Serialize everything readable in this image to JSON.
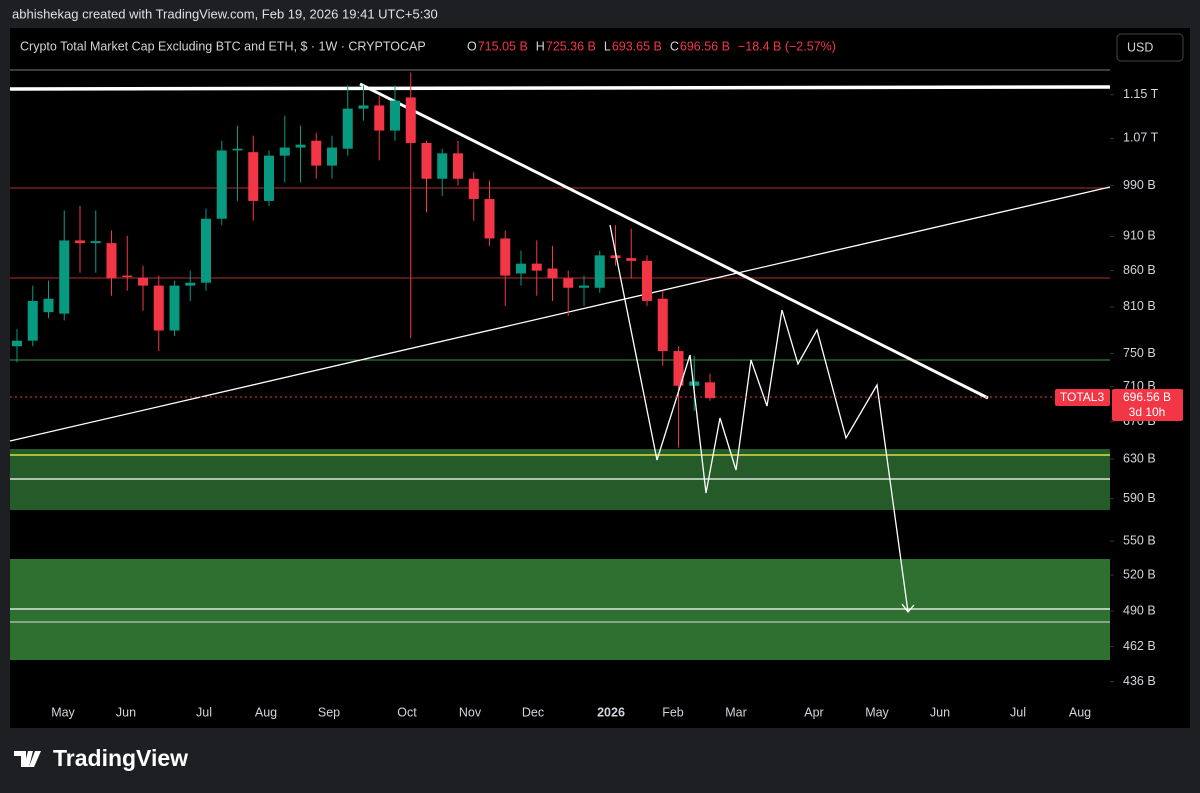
{
  "header": {
    "attribution": "abhishekag created with TradingView.com, Feb 19, 2026 19:41 UTC+5:30"
  },
  "chart_data": {
    "type": "candlestick",
    "title": "Crypto Total Market Cap Excluding BTC and ETH, $ · 1W · CRYPTOCAP",
    "legend": {
      "items": [
        {
          "key": "O",
          "text": "715.05 B"
        },
        {
          "key": "H",
          "text": "725.36 B"
        },
        {
          "key": "L",
          "text": "693.65 B"
        },
        {
          "key": "C",
          "text": "696.56 B"
        }
      ],
      "change": "−18.4 B (−2.57%)"
    },
    "currency": "USD",
    "up_color": "#089981",
    "down_color": "#f23645",
    "log": true,
    "ylim": [
      423,
      1280
    ],
    "yticks": [
      {
        "value": 1150,
        "label": "1.15 T"
      },
      {
        "value": 1070,
        "label": "1.07 T"
      },
      {
        "value": 990,
        "label": "990 B"
      },
      {
        "value": 910,
        "label": "910 B"
      },
      {
        "value": 860,
        "label": "860 B"
      },
      {
        "value": 810,
        "label": "810 B"
      },
      {
        "value": 750,
        "label": "750 B"
      },
      {
        "value": 710,
        "label": "710 B"
      },
      {
        "value": 670,
        "label": "670 B"
      },
      {
        "value": 630,
        "label": "630 B"
      },
      {
        "value": 590,
        "label": "590 B"
      },
      {
        "value": 550,
        "label": "550 B"
      },
      {
        "value": 520,
        "label": "520 B"
      },
      {
        "value": 490,
        "label": "490 B"
      },
      {
        "value": 462,
        "label": "462 B"
      },
      {
        "value": 436,
        "label": "436 B"
      }
    ],
    "xticks": [
      "May",
      "Jun",
      "Jul",
      "Aug",
      "Sep",
      "Oct",
      "Nov",
      "Dec",
      "2026",
      "Feb",
      "Mar",
      "Apr",
      "May",
      "Jun",
      "Jul",
      "Aug"
    ],
    "open": [
      759,
      766,
      803,
      801,
      904,
      900,
      900,
      853,
      850,
      839,
      779,
      839,
      843,
      937,
      1049,
      1046,
      965,
      1040,
      1054,
      1066,
      1023,
      1052,
      1124,
      1130,
      1084,
      1145,
      1062,
      1001,
      1044,
      1001,
      968,
      907,
      856,
      870,
      863,
      849,
      836,
      836,
      882,
      878,
      874,
      821,
      753,
      711,
      715.05
    ],
    "high": [
      781,
      839,
      846,
      950,
      957,
      950,
      919,
      911,
      867,
      853,
      846,
      860,
      953,
      1066,
      1093,
      1075,
      1049,
      1111,
      1093,
      1080,
      1075,
      1168,
      1168,
      1148,
      1168,
      1193,
      1066,
      1052,
      1066,
      1012,
      998,
      919,
      889,
      904,
      896,
      860,
      853,
      889,
      927,
      922,
      882,
      832,
      759,
      747,
      725.36
    ],
    "low": [
      739,
      759,
      795,
      792,
      857,
      857,
      825,
      832,
      805,
      753,
      772,
      818,
      832,
      927,
      965,
      934,
      957,
      995,
      995,
      1001,
      1001,
      1040,
      1102,
      1032,
      1066,
      769,
      947,
      973,
      990,
      934,
      896,
      811,
      839,
      825,
      818,
      798,
      811,
      829,
      867,
      849,
      811,
      735,
      642,
      682,
      693.65
    ],
    "close": [
      766,
      818,
      821,
      904,
      900,
      903,
      849,
      852,
      839,
      779,
      839,
      843,
      937,
      1049,
      1052,
      965,
      1040,
      1054,
      1059,
      1023,
      1054,
      1124,
      1130,
      1084,
      1139,
      1062,
      1001,
      1044,
      1001,
      968,
      907,
      853,
      870,
      860,
      849,
      836,
      839,
      882,
      878,
      874,
      818,
      753,
      711,
      716,
      696.56
    ],
    "price_tag": {
      "symbol": "TOTAL3",
      "price": "696.56 B",
      "countdown": "3d 10h"
    },
    "brand": "TradingView"
  }
}
